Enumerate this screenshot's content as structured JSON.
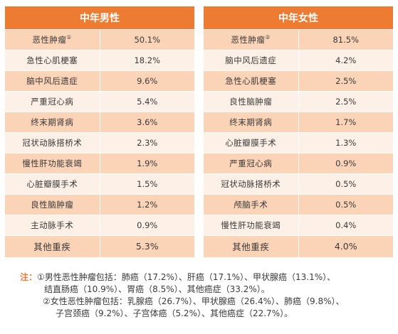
{
  "left": {
    "title": "中年男性",
    "rows": [
      {
        "name": "恶性肿瘤",
        "sup": "①",
        "pct": "50.1%"
      },
      {
        "name": "急性心肌梗塞",
        "sup": "",
        "pct": "18.2%"
      },
      {
        "name": "脑中风后遗症",
        "sup": "",
        "pct": "9.6%"
      },
      {
        "name": "严重冠心病",
        "sup": "",
        "pct": "5.4%"
      },
      {
        "name": "终末期肾病",
        "sup": "",
        "pct": "3.6%"
      },
      {
        "name": "冠状动脉搭桥术",
        "sup": "",
        "pct": "2.3%"
      },
      {
        "name": "慢性肝功能衰竭",
        "sup": "",
        "pct": "1.9%"
      },
      {
        "name": "心脏瓣膜手术",
        "sup": "",
        "pct": "1.5%"
      },
      {
        "name": "良性脑肿瘤",
        "sup": "",
        "pct": "1.2%"
      },
      {
        "name": "主动脉手术",
        "sup": "",
        "pct": "0.9%"
      }
    ],
    "other": {
      "name": "其他重疾",
      "pct": "5.3%"
    }
  },
  "right": {
    "title": "中年女性",
    "rows": [
      {
        "name": "恶性肿瘤",
        "sup": "②",
        "pct": "81.5%"
      },
      {
        "name": "脑中风后遗症",
        "sup": "",
        "pct": "4.2%"
      },
      {
        "name": "急性心肌梗塞",
        "sup": "",
        "pct": "2.5%"
      },
      {
        "name": "良性脑肿瘤",
        "sup": "",
        "pct": "2.5%"
      },
      {
        "name": "终末期肾病",
        "sup": "",
        "pct": "1.7%"
      },
      {
        "name": "心脏瓣膜手术",
        "sup": "",
        "pct": "1.3%"
      },
      {
        "name": "严重冠心病",
        "sup": "",
        "pct": "0.9%"
      },
      {
        "name": "冠状动脉搭桥术",
        "sup": "",
        "pct": "0.5%"
      },
      {
        "name": "颅脑手术",
        "sup": "",
        "pct": "0.5%"
      },
      {
        "name": "慢性肝功能衰竭",
        "sup": "",
        "pct": "0.4%"
      }
    ],
    "other": {
      "name": "其他重疾",
      "pct": "4.0%"
    }
  },
  "notes": {
    "label": "注：",
    "line1": "①男性恶性肿瘤包括：肺癌（17.2%）、肝癌（17.1%）、甲状腺癌（13.1%）、",
    "line2": "结直肠癌（10.9%）、胃癌（8.5%）、其他癌症（33.2%）。",
    "line3": "②女性恶性肿瘤包括：乳腺癌（26.7%）、甲状腺癌（26.4%）、肺癌（9.8%）、",
    "line4": "子宫颈癌（9.2%）、子宫体癌（5.2%）、其他癌症（22.7%）。"
  },
  "colors": {
    "header": "#ee7b32",
    "row_dark": "#fbd3b7",
    "row_light": "#fdf0e6",
    "note_label": "#ee7b32"
  }
}
